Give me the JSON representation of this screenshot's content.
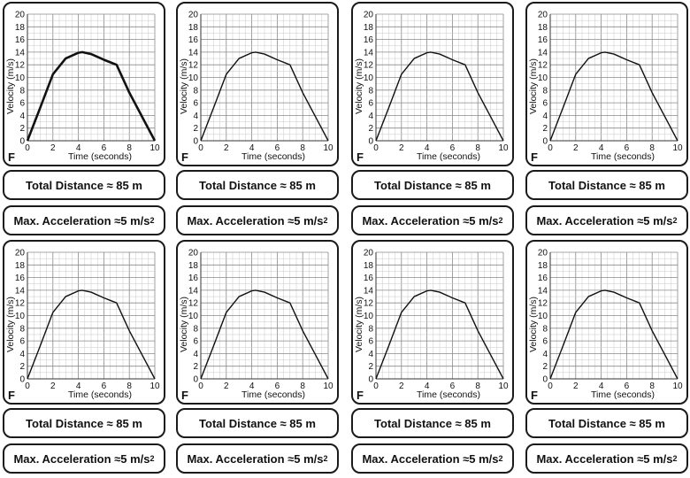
{
  "chart_data": {
    "type": "line",
    "title": "",
    "xlabel": "Time (seconds)",
    "ylabel": "Velocity (m/s)",
    "xlim": [
      0,
      10
    ],
    "ylim": [
      0,
      20
    ],
    "x_ticks": [
      "0",
      "2",
      "4",
      "6",
      "8",
      "10"
    ],
    "y_ticks": [
      "0",
      "2",
      "4",
      "6",
      "8",
      "10",
      "12",
      "14",
      "16",
      "18",
      "20"
    ],
    "grid": true,
    "series": [
      {
        "name": "velocity",
        "x": [
          0,
          1,
          2,
          3,
          4,
          4.3,
          5,
          6,
          7,
          8,
          9,
          10
        ],
        "y": [
          0,
          5.2,
          10.5,
          13,
          13.9,
          14,
          13.7,
          12.8,
          12,
          7.6,
          3.8,
          0
        ]
      }
    ],
    "card_letter": "F"
  },
  "labels": {
    "distance": "Total Distance ≈ 85 m",
    "acceleration": "Max. Acceleration ≈5 m/s",
    "acceleration_exp": "2"
  },
  "colors": {
    "line": "#111111",
    "grid_minor": "#c8c8c8",
    "grid_major": "#8a8a8a",
    "border": "#1a1a1a"
  }
}
